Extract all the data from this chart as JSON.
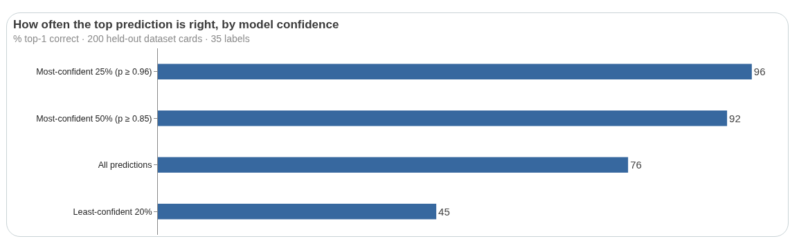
{
  "chart_data": {
    "type": "bar",
    "orientation": "horizontal",
    "title": "How often the top prediction is right, by model confidence",
    "subtitle": "% top-1 correct · 200 held-out dataset cards · 35 labels",
    "categories": [
      "Most-confident 25% (p ≥ 0.96)",
      "Most-confident 50% (p ≥ 0.85)",
      "All predictions",
      "Least-confident 20%"
    ],
    "values": [
      96,
      92,
      76,
      45
    ],
    "color": "#37689f",
    "data_labels": true,
    "tick_labels": "y"
  }
}
